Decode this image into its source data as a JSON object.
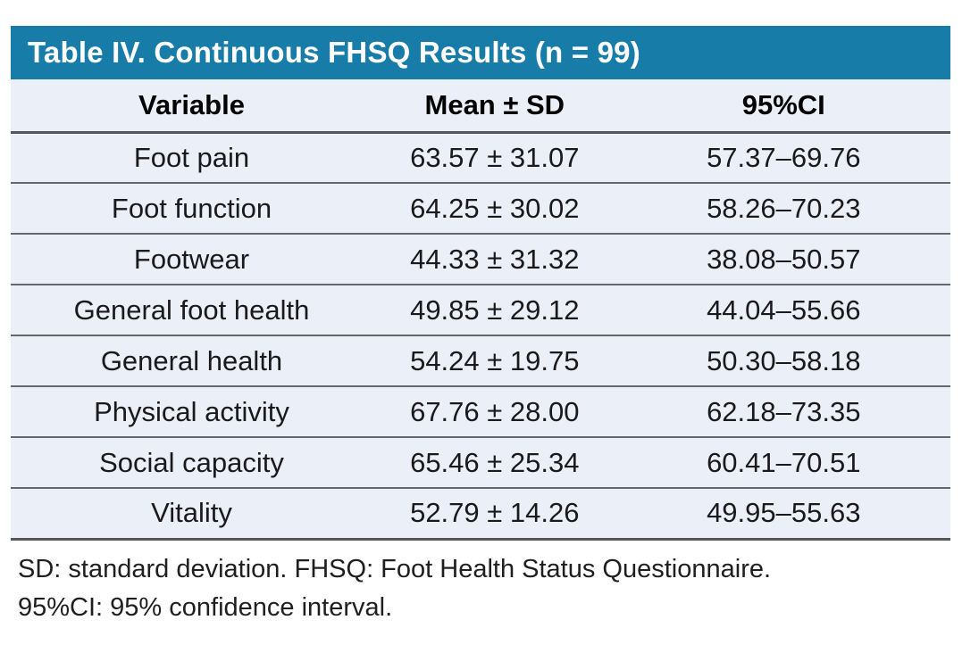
{
  "table": {
    "title": "Table IV. Continuous FHSQ Results (n = 99)",
    "columns": [
      "Variable",
      "Mean ± SD",
      "95%CI"
    ],
    "rows": [
      [
        "Foot pain",
        "63.57 ± 31.07",
        "57.37–69.76"
      ],
      [
        "Foot function",
        "64.25 ± 30.02",
        "58.26–70.23"
      ],
      [
        "Footwear",
        "44.33 ± 31.32",
        "38.08–50.57"
      ],
      [
        "General foot health",
        "49.85 ± 29.12",
        "44.04–55.66"
      ],
      [
        "General health",
        "54.24 ± 19.75",
        "50.30–58.18"
      ],
      [
        "Physical activity",
        "67.76 ± 28.00",
        "62.18–73.35"
      ],
      [
        "Social capacity",
        "65.46 ± 25.34",
        "60.41–70.51"
      ],
      [
        "Vitality",
        "52.79 ± 14.26",
        "49.95–55.63"
      ]
    ]
  },
  "footnotes": [
    "SD: standard deviation. FHSQ: Foot Health Status Questionnaire.",
    "95%CI: 95% confidence interval."
  ],
  "colors": {
    "title_bar_bg": "#187CA9",
    "title_text": "#FFFFFF",
    "row_bg": "#EBEFF7",
    "divider": "#64676C",
    "divider_strong": "#54575C",
    "body_text": "#1A1A1C"
  }
}
